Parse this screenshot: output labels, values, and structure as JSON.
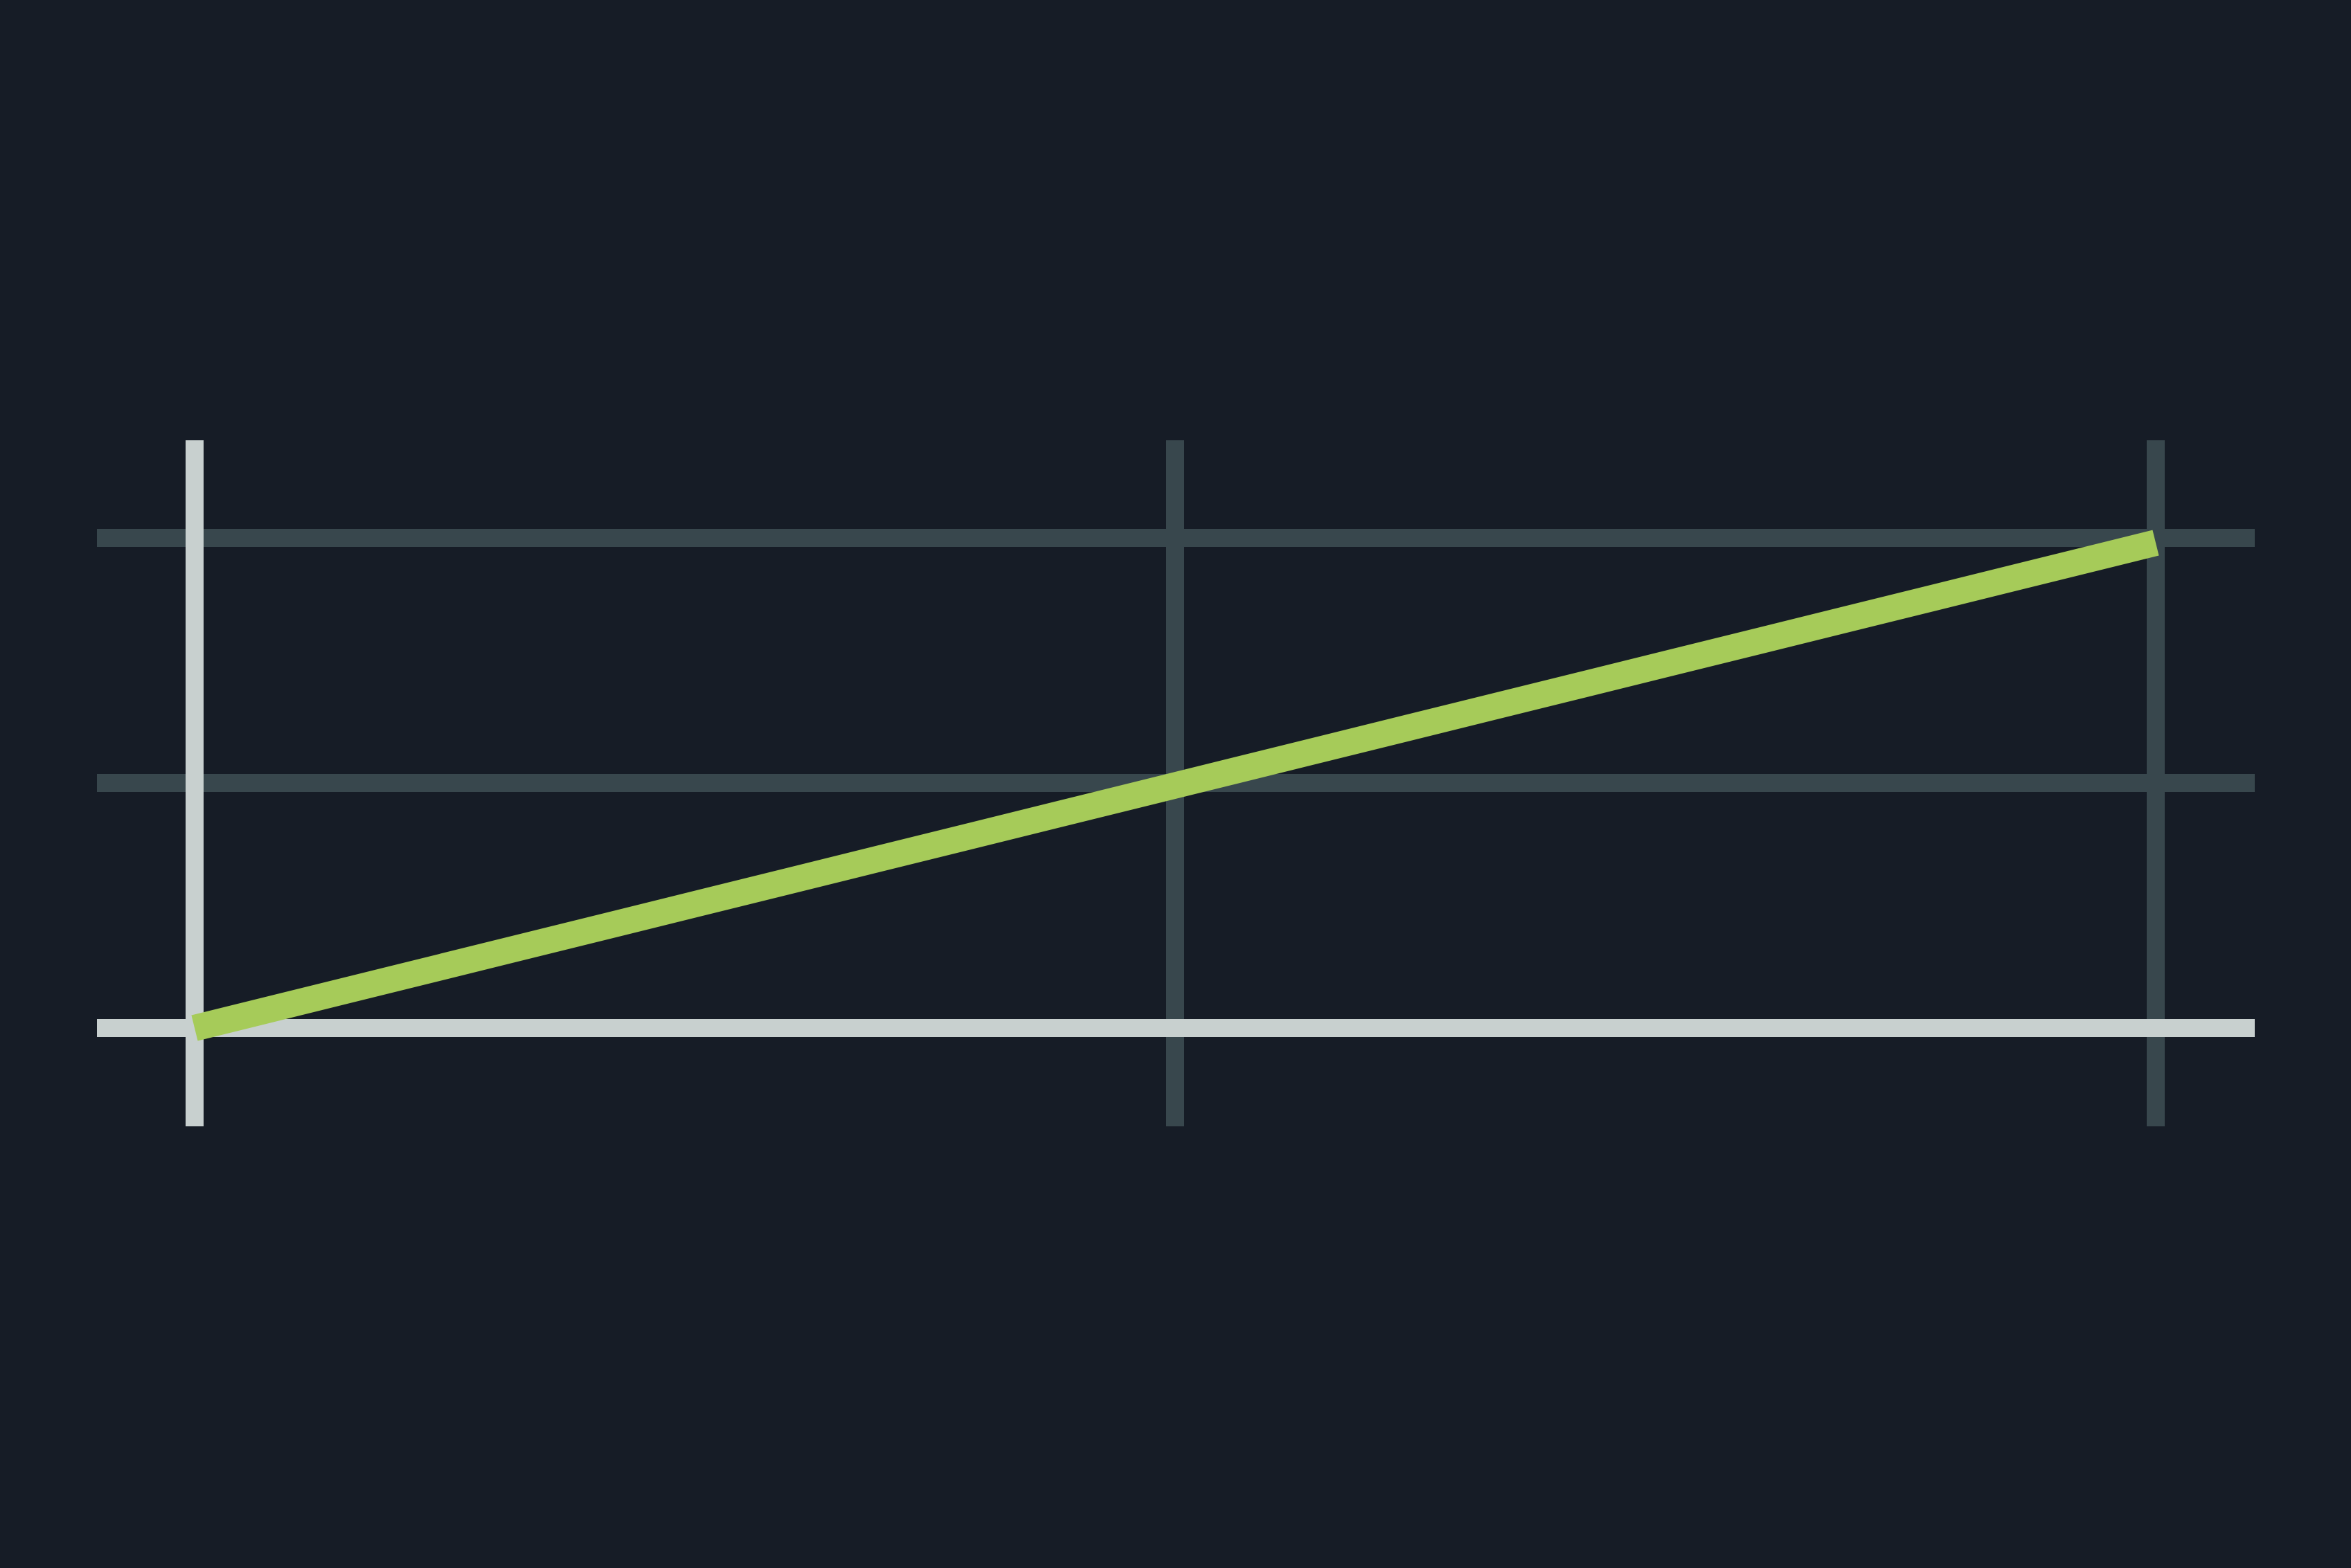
{
  "colors": {
    "background": "#161c26",
    "grid": "#38474d",
    "axis": "#c8d0cf",
    "series": "#a6cb59"
  },
  "chart_data": {
    "type": "line",
    "title": "",
    "xlabel": "",
    "ylabel": "",
    "x_ticks": [
      0,
      1,
      2
    ],
    "y_ticks": [
      0,
      1,
      2
    ],
    "xlim": [
      -0.1,
      2.1
    ],
    "ylim": [
      -0.4,
      2.4
    ],
    "grid": true,
    "legend": "none",
    "series": [
      {
        "x": [
          0,
          2
        ],
        "y": [
          0,
          1.98
        ]
      }
    ]
  }
}
